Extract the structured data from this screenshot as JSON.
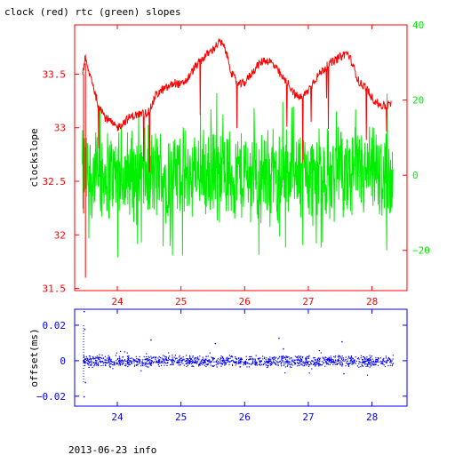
{
  "title": "clock (red) rtc (green) slopes",
  "footer": "2013-06-23 info",
  "colors": {
    "clock": "#ff0000",
    "rtc": "#00ee00",
    "offset": "#0000ff",
    "frame_top": "#ff0000",
    "frame_bottom": "#0000ff",
    "text_left": "#ff0000",
    "text_right": "#00ee00",
    "text_bottom": "#0000ff"
  },
  "chart_data": [
    {
      "type": "line",
      "ylabel": "clockslope",
      "xlim": [
        23.33,
        28.55
      ],
      "ylim": [
        31.48,
        33.96
      ],
      "y2lim": [
        -30.7,
        40.0
      ],
      "xticks": [
        24,
        25,
        26,
        27,
        28
      ],
      "yticks": [
        31.5,
        32,
        32.5,
        33,
        33.5
      ],
      "y2ticks": [
        -20,
        0,
        20,
        40
      ],
      "grid": false,
      "series": [
        {
          "name": "clock",
          "axis": "left",
          "x": [
            23.45,
            23.48,
            23.5,
            23.52,
            23.55,
            23.6,
            23.65,
            23.7,
            23.75,
            23.8,
            23.85,
            23.9,
            23.95,
            24.0,
            24.1,
            24.2,
            24.3,
            24.4,
            24.5,
            24.55,
            24.6,
            24.7,
            24.8,
            24.9,
            25.0,
            25.1,
            25.2,
            25.3,
            25.4,
            25.5,
            25.6,
            25.65,
            25.7,
            25.75,
            25.8,
            25.9,
            26.0,
            26.1,
            26.2,
            26.3,
            26.4,
            26.5,
            26.6,
            26.7,
            26.8,
            26.9,
            27.0,
            27.1,
            27.2,
            27.3,
            27.4,
            27.5,
            27.6,
            27.65,
            27.7,
            27.8,
            27.9,
            28.0,
            28.1,
            28.2,
            28.3
          ],
          "values": [
            33.5,
            33.6,
            33.65,
            33.58,
            33.52,
            33.45,
            33.32,
            33.22,
            33.18,
            33.1,
            33.08,
            33.05,
            33.02,
            33.0,
            33.05,
            33.1,
            33.12,
            33.13,
            33.15,
            33.22,
            33.3,
            33.35,
            33.38,
            33.42,
            33.4,
            33.45,
            33.55,
            33.62,
            33.68,
            33.73,
            33.8,
            33.78,
            33.72,
            33.62,
            33.5,
            33.4,
            33.42,
            33.5,
            33.58,
            33.63,
            33.62,
            33.55,
            33.46,
            33.4,
            33.3,
            33.28,
            33.35,
            33.45,
            33.52,
            33.58,
            33.62,
            33.66,
            33.7,
            33.66,
            33.58,
            33.42,
            33.38,
            33.28,
            33.22,
            33.2,
            33.22
          ]
        },
        {
          "name": "rtc",
          "axis": "right",
          "x_range": [
            23.45,
            28.33
          ],
          "center": 0,
          "band": [
            -12,
            12
          ]
        }
      ]
    },
    {
      "type": "scatter",
      "ylabel": "offset(ms)",
      "xlim": [
        23.33,
        28.55
      ],
      "ylim": [
        -0.0256,
        0.029
      ],
      "xticks": [
        24,
        25,
        26,
        27,
        28
      ],
      "yticks": [
        -0.02,
        0,
        0.02
      ],
      "ytick_labels": [
        "−0.02",
        "0",
        "0.02"
      ],
      "grid": false,
      "series": [
        {
          "name": "offset",
          "x_range": [
            23.45,
            28.33
          ],
          "center": 0,
          "band": [
            -0.003,
            0.003
          ],
          "outliers": [
            {
              "x": 23.47,
              "y": 0.028
            },
            {
              "x": 23.48,
              "y": 0.018
            },
            {
              "x": 23.47,
              "y": -0.02
            },
            {
              "x": 23.49,
              "y": -0.012
            },
            {
              "x": 24.52,
              "y": 0.012
            },
            {
              "x": 25.53,
              "y": 0.01
            },
            {
              "x": 26.53,
              "y": 0.013
            },
            {
              "x": 26.6,
              "y": 0.007
            },
            {
              "x": 27.52,
              "y": 0.011
            },
            {
              "x": 27.55,
              "y": -0.007
            }
          ]
        }
      ]
    }
  ]
}
